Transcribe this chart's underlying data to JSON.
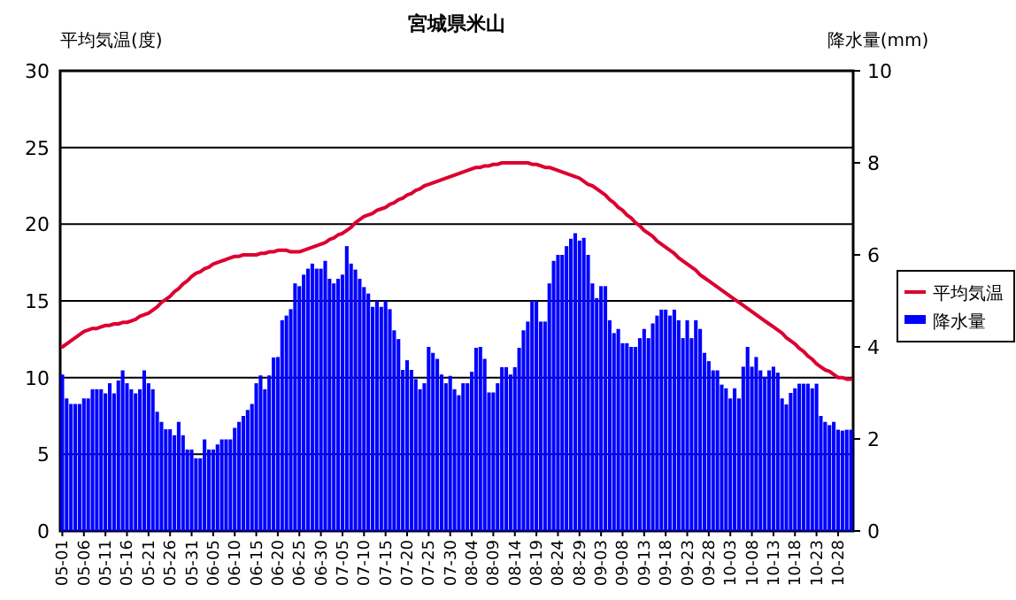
{
  "chart_data": {
    "type": "bar",
    "title": "宮城県米山",
    "ylabel": "平均気温(度)",
    "y2label": "降水量(mm)",
    "categories": [
      "05-01",
      null,
      null,
      null,
      null,
      "05-06",
      null,
      null,
      null,
      null,
      "05-11",
      null,
      null,
      null,
      null,
      "05-16",
      null,
      null,
      null,
      null,
      "05-21",
      null,
      null,
      null,
      null,
      "05-26",
      null,
      null,
      null,
      null,
      "05-31",
      null,
      null,
      null,
      null,
      "06-05",
      null,
      null,
      null,
      null,
      "06-10",
      null,
      null,
      null,
      null,
      "06-15",
      null,
      null,
      null,
      null,
      "06-20",
      null,
      null,
      null,
      null,
      "06-25",
      null,
      null,
      null,
      null,
      "06-30",
      null,
      null,
      null,
      null,
      "07-05",
      null,
      null,
      null,
      null,
      "07-10",
      null,
      null,
      null,
      null,
      "07-15",
      null,
      null,
      null,
      null,
      "07-20",
      null,
      null,
      null,
      null,
      "07-25",
      null,
      null,
      null,
      null,
      "07-30",
      null,
      null,
      null,
      null,
      "08-04",
      null,
      null,
      null,
      null,
      "08-09",
      null,
      null,
      null,
      null,
      "08-14",
      null,
      null,
      null,
      null,
      "08-19",
      null,
      null,
      null,
      null,
      "08-24",
      null,
      null,
      null,
      null,
      "08-29",
      null,
      null,
      null,
      null,
      "09-03",
      null,
      null,
      null,
      null,
      "09-08",
      null,
      null,
      null,
      null,
      "09-13",
      null,
      null,
      null,
      null,
      "09-18",
      null,
      null,
      null,
      null,
      "09-23",
      null,
      null,
      null,
      null,
      "09-28",
      null,
      null,
      null,
      null,
      "10-03",
      null,
      null,
      null,
      null,
      "10-08",
      null,
      null,
      null,
      null,
      "10-13",
      null,
      null,
      null,
      null,
      "10-18",
      null,
      null,
      null,
      null,
      "10-23",
      null,
      null,
      null,
      null,
      "10-28",
      null,
      null,
      null
    ],
    "series": [
      {
        "name": "平均気温",
        "type": "line",
        "color": "#dc0030",
        "values": [
          12.0,
          12.2,
          12.4,
          12.6,
          12.8,
          13.0,
          13.1,
          13.2,
          13.2,
          13.3,
          13.4,
          13.4,
          13.5,
          13.5,
          13.6,
          13.6,
          13.7,
          13.8,
          14.0,
          14.1,
          14.2,
          14.4,
          14.6,
          14.9,
          15.1,
          15.3,
          15.6,
          15.8,
          16.1,
          16.3,
          16.6,
          16.8,
          16.9,
          17.1,
          17.2,
          17.4,
          17.5,
          17.6,
          17.7,
          17.8,
          17.9,
          17.9,
          18.0,
          18.0,
          18.0,
          18.0,
          18.1,
          18.1,
          18.2,
          18.2,
          18.3,
          18.3,
          18.3,
          18.2,
          18.2,
          18.2,
          18.3,
          18.4,
          18.5,
          18.6,
          18.7,
          18.8,
          19.0,
          19.1,
          19.3,
          19.4,
          19.6,
          19.8,
          20.1,
          20.3,
          20.5,
          20.6,
          20.7,
          20.9,
          21.0,
          21.1,
          21.3,
          21.4,
          21.6,
          21.7,
          21.9,
          22.0,
          22.2,
          22.3,
          22.5,
          22.6,
          22.7,
          22.8,
          22.9,
          23.0,
          23.1,
          23.2,
          23.3,
          23.4,
          23.5,
          23.6,
          23.7,
          23.7,
          23.8,
          23.8,
          23.9,
          23.9,
          24.0,
          24.0,
          24.0,
          24.0,
          24.0,
          24.0,
          24.0,
          23.9,
          23.9,
          23.8,
          23.7,
          23.7,
          23.6,
          23.5,
          23.4,
          23.3,
          23.2,
          23.1,
          23.0,
          22.8,
          22.6,
          22.5,
          22.3,
          22.1,
          21.9,
          21.6,
          21.4,
          21.1,
          20.9,
          20.6,
          20.4,
          20.1,
          19.9,
          19.6,
          19.4,
          19.2,
          18.9,
          18.7,
          18.5,
          18.3,
          18.1,
          17.8,
          17.6,
          17.4,
          17.2,
          17.0,
          16.7,
          16.5,
          16.3,
          16.1,
          15.9,
          15.7,
          15.5,
          15.3,
          15.1,
          14.9,
          14.7,
          14.5,
          14.3,
          14.1,
          13.9,
          13.7,
          13.5,
          13.3,
          13.1,
          12.9,
          12.6,
          12.4,
          12.2,
          11.9,
          11.7,
          11.4,
          11.2,
          10.9,
          10.7,
          10.5,
          10.4,
          10.2,
          10.0,
          10.0,
          9.9,
          9.9
        ]
      },
      {
        "name": "降水量",
        "axis": "y2",
        "color": "#0000ff",
        "values": [
          3.4,
          2.88,
          2.76,
          2.76,
          2.76,
          2.88,
          2.88,
          3.08,
          3.08,
          3.08,
          2.99,
          3.21,
          2.99,
          3.27,
          3.49,
          3.21,
          3.08,
          2.99,
          3.08,
          3.49,
          3.21,
          3.08,
          2.59,
          2.37,
          2.21,
          2.21,
          2.08,
          2.37,
          2.08,
          1.77,
          1.77,
          1.58,
          1.58,
          1.99,
          1.77,
          1.77,
          1.88,
          1.99,
          1.99,
          1.99,
          2.24,
          2.37,
          2.5,
          2.63,
          2.76,
          3.21,
          3.38,
          3.08,
          3.38,
          3.77,
          3.78,
          4.58,
          4.68,
          4.82,
          5.38,
          5.32,
          5.57,
          5.7,
          5.81,
          5.7,
          5.7,
          5.87,
          5.48,
          5.38,
          5.48,
          5.57,
          6.19,
          5.81,
          5.68,
          5.48,
          5.3,
          5.16,
          4.87,
          5.0,
          4.87,
          5.0,
          4.82,
          4.36,
          4.17,
          3.5,
          3.71,
          3.5,
          3.3,
          3.08,
          3.21,
          4.0,
          3.87,
          3.74,
          3.4,
          3.21,
          3.37,
          3.08,
          2.95,
          3.21,
          3.21,
          3.46,
          3.98,
          4.0,
          3.74,
          3.01,
          3.01,
          3.21,
          3.56,
          3.56,
          3.4,
          3.56,
          3.98,
          4.36,
          4.55,
          5.0,
          5.0,
          4.55,
          4.55,
          5.38,
          5.87,
          6.0,
          6.0,
          6.19,
          6.35,
          6.47,
          6.31,
          6.37,
          6.0,
          5.38,
          5.06,
          5.32,
          5.32,
          4.58,
          4.3,
          4.39,
          4.08,
          4.08,
          4.0,
          4.0,
          4.19,
          4.39,
          4.19,
          4.51,
          4.68,
          4.81,
          4.81,
          4.68,
          4.81,
          4.58,
          4.19,
          4.58,
          4.19,
          4.58,
          4.39,
          3.87,
          3.69,
          3.49,
          3.49,
          3.18,
          3.1,
          2.88,
          3.1,
          2.88,
          3.57,
          4.0,
          3.57,
          3.78,
          3.49,
          3.35,
          3.49,
          3.57,
          3.44,
          2.88,
          2.75,
          3.0,
          3.1,
          3.2,
          3.2,
          3.2,
          3.1,
          3.2,
          2.5,
          2.37,
          2.3,
          2.37,
          2.2,
          2.18,
          2.2,
          2.2
        ]
      }
    ],
    "ylim": [
      0,
      30
    ],
    "yticks": [
      0,
      5,
      10,
      15,
      20,
      25,
      30
    ],
    "y2lim": [
      0,
      10
    ],
    "y2ticks": [
      0,
      2,
      4,
      6,
      8,
      10
    ],
    "grid": "y",
    "legend": "right"
  }
}
